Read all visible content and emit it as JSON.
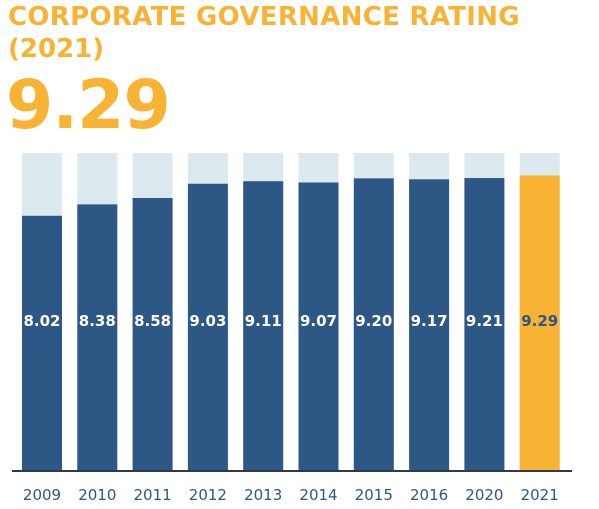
{
  "header": {
    "title_line1": "CORPORATE GOVERNANCE RATING",
    "title_line2": "(2021)",
    "headline_value": "9.29"
  },
  "colors": {
    "title": "#f9b334",
    "bar": "#2d5785",
    "bar_highlight": "#f9b334",
    "bar_background": "#dce9ee",
    "label_on_bar": "#ffffff",
    "label_on_highlight": "#2d5785",
    "axis": "#2f3b48"
  },
  "chart_data": {
    "type": "bar",
    "categories": [
      "2009",
      "2010",
      "2011",
      "2012",
      "2013",
      "2014",
      "2015",
      "2016",
      "2020",
      "2021"
    ],
    "values": [
      8.02,
      8.38,
      8.58,
      9.03,
      9.11,
      9.07,
      9.2,
      9.17,
      9.21,
      9.29
    ],
    "data_labels": [
      "8.02",
      "8.38",
      "8.58",
      "9.03",
      "9.11",
      "9.07",
      "9.20",
      "9.17",
      "9.21",
      "9.29"
    ],
    "ylim": [
      0,
      10
    ],
    "highlight_category": "2021",
    "grid": false,
    "legend": "none"
  }
}
